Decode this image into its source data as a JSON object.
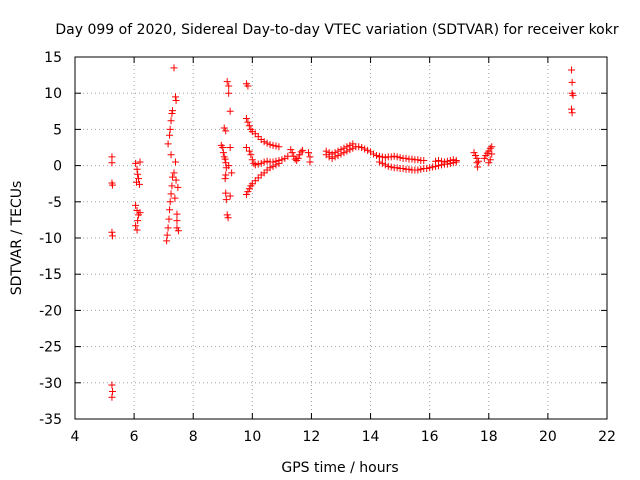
{
  "chart_data": {
    "type": "scatter",
    "title": "Day 099 of 2020, Sidereal Day-to-day VTEC variation (SDTVAR) for receiver kokr",
    "xlabel": "GPS time / hours",
    "ylabel": "SDTVAR / TECUs",
    "xlim": [
      4,
      22
    ],
    "ylim": [
      -35,
      15
    ],
    "xticks": [
      4,
      6,
      8,
      10,
      12,
      14,
      16,
      18,
      20,
      22
    ],
    "yticks": [
      15,
      10,
      5,
      0,
      -5,
      -10,
      -15,
      -20,
      -25,
      -30,
      -35
    ],
    "grid": true,
    "marker": "+",
    "color": "#ff0000",
    "series": [
      {
        "name": "SDTVAR",
        "points": [
          [
            5.25,
            1.2
          ],
          [
            5.25,
            0.4
          ],
          [
            5.25,
            -2.4
          ],
          [
            5.27,
            -2.7
          ],
          [
            5.25,
            -9.2
          ],
          [
            5.27,
            -9.7
          ],
          [
            5.25,
            -30.3
          ],
          [
            5.27,
            -31.2
          ],
          [
            5.25,
            -32.0
          ],
          [
            6.05,
            0.3
          ],
          [
            6.1,
            -0.5
          ],
          [
            6.12,
            -1.2
          ],
          [
            6.15,
            -1.8
          ],
          [
            6.08,
            -2.3
          ],
          [
            6.18,
            -2.6
          ],
          [
            6.05,
            -5.5
          ],
          [
            6.1,
            -6.2
          ],
          [
            6.15,
            -6.8
          ],
          [
            6.12,
            -7.6
          ],
          [
            6.05,
            -8.3
          ],
          [
            6.1,
            -8.9
          ],
          [
            6.2,
            -6.5
          ],
          [
            6.2,
            0.5
          ],
          [
            7.1,
            -10.4
          ],
          [
            7.12,
            -9.6
          ],
          [
            7.15,
            -8.6
          ],
          [
            7.18,
            -7.4
          ],
          [
            7.2,
            -6.1
          ],
          [
            7.22,
            -5.0
          ],
          [
            7.25,
            -3.9
          ],
          [
            7.28,
            -2.8
          ],
          [
            7.3,
            -1.6
          ],
          [
            7.25,
            1.5
          ],
          [
            7.2,
            4.2
          ],
          [
            7.22,
            5.0
          ],
          [
            7.25,
            6.2
          ],
          [
            7.28,
            7.2
          ],
          [
            7.3,
            7.6
          ],
          [
            7.35,
            13.5
          ],
          [
            7.4,
            9.5
          ],
          [
            7.42,
            9.0
          ],
          [
            7.4,
            0.5
          ],
          [
            7.42,
            -2.0
          ],
          [
            7.45,
            -6.7
          ],
          [
            7.45,
            -7.6
          ],
          [
            7.45,
            -8.6
          ],
          [
            7.48,
            -3.0
          ],
          [
            7.5,
            -9.0
          ],
          [
            7.15,
            3.0
          ],
          [
            7.35,
            -1.0
          ],
          [
            7.38,
            -4.5
          ],
          [
            8.95,
            2.8
          ],
          [
            9.0,
            2.5
          ],
          [
            9.02,
            1.8
          ],
          [
            9.05,
            1.2
          ],
          [
            9.08,
            0.9
          ],
          [
            9.1,
            0.4
          ],
          [
            9.12,
            -0.3
          ],
          [
            9.1,
            -1.3
          ],
          [
            9.08,
            -1.8
          ],
          [
            9.1,
            -3.8
          ],
          [
            9.12,
            -4.7
          ],
          [
            9.15,
            -6.8
          ],
          [
            9.18,
            -7.2
          ],
          [
            9.05,
            5.2
          ],
          [
            9.1,
            4.8
          ],
          [
            9.15,
            11.6
          ],
          [
            9.2,
            11.0
          ],
          [
            9.2,
            10.0
          ],
          [
            9.25,
            7.5
          ],
          [
            9.25,
            2.5
          ],
          [
            9.2,
            0.0
          ],
          [
            9.25,
            -4.2
          ],
          [
            9.3,
            -1.0
          ],
          [
            9.8,
            11.3
          ],
          [
            9.85,
            11.0
          ],
          [
            9.8,
            6.5
          ],
          [
            9.85,
            6.0
          ],
          [
            9.9,
            5.5
          ],
          [
            9.95,
            5.0
          ],
          [
            10.0,
            4.7
          ],
          [
            10.1,
            4.4
          ],
          [
            10.2,
            4.0
          ],
          [
            10.3,
            3.6
          ],
          [
            10.4,
            3.3
          ],
          [
            10.5,
            3.1
          ],
          [
            10.6,
            2.9
          ],
          [
            10.7,
            2.8
          ],
          [
            10.8,
            2.7
          ],
          [
            10.9,
            2.6
          ],
          [
            9.8,
            2.5
          ],
          [
            9.9,
            2.0
          ],
          [
            9.95,
            1.5
          ],
          [
            10.0,
            0.8
          ],
          [
            10.05,
            0.3
          ],
          [
            10.1,
            0.1
          ],
          [
            10.2,
            0.2
          ],
          [
            10.3,
            0.3
          ],
          [
            10.4,
            0.5
          ],
          [
            10.5,
            0.6
          ],
          [
            10.6,
            0.5
          ],
          [
            10.7,
            0.5
          ],
          [
            10.8,
            0.6
          ],
          [
            10.9,
            0.7
          ],
          [
            11.0,
            0.8
          ],
          [
            11.1,
            1.0
          ],
          [
            11.2,
            1.3
          ],
          [
            9.8,
            -4.0
          ],
          [
            9.85,
            -3.6
          ],
          [
            9.9,
            -3.2
          ],
          [
            9.95,
            -2.8
          ],
          [
            10.0,
            -2.5
          ],
          [
            10.1,
            -2.1
          ],
          [
            10.2,
            -1.7
          ],
          [
            10.3,
            -1.3
          ],
          [
            10.4,
            -1.0
          ],
          [
            10.5,
            -0.6
          ],
          [
            10.6,
            -0.3
          ],
          [
            10.7,
            -0.1
          ],
          [
            10.8,
            0.1
          ],
          [
            10.9,
            0.3
          ],
          [
            11.3,
            2.2
          ],
          [
            11.35,
            1.8
          ],
          [
            11.4,
            1.3
          ],
          [
            11.45,
            0.9
          ],
          [
            11.5,
            0.7
          ],
          [
            11.55,
            1.0
          ],
          [
            11.6,
            1.5
          ],
          [
            11.65,
            1.9
          ],
          [
            11.7,
            2.1
          ],
          [
            11.9,
            1.8
          ],
          [
            11.95,
            1.2
          ],
          [
            11.95,
            0.5
          ],
          [
            12.5,
            1.5
          ],
          [
            12.6,
            1.2
          ],
          [
            12.7,
            1.0
          ],
          [
            12.8,
            1.2
          ],
          [
            12.9,
            1.4
          ],
          [
            13.0,
            1.6
          ],
          [
            13.1,
            1.8
          ],
          [
            13.2,
            2.0
          ],
          [
            13.3,
            2.2
          ],
          [
            13.4,
            2.4
          ],
          [
            13.5,
            2.6
          ],
          [
            13.6,
            2.6
          ],
          [
            13.7,
            2.5
          ],
          [
            13.8,
            2.3
          ],
          [
            13.9,
            2.1
          ],
          [
            14.0,
            1.9
          ],
          [
            14.1,
            1.6
          ],
          [
            14.2,
            1.4
          ],
          [
            14.3,
            1.2
          ],
          [
            12.5,
            2.0
          ],
          [
            12.6,
            1.8
          ],
          [
            12.7,
            1.6
          ],
          [
            12.8,
            1.8
          ],
          [
            12.9,
            2.0
          ],
          [
            13.0,
            2.2
          ],
          [
            13.1,
            2.4
          ],
          [
            13.2,
            2.6
          ],
          [
            13.3,
            2.8
          ],
          [
            13.4,
            3.0
          ],
          [
            14.3,
            1.3
          ],
          [
            14.4,
            1.2
          ],
          [
            14.5,
            1.1
          ],
          [
            14.6,
            1.2
          ],
          [
            14.7,
            1.2
          ],
          [
            14.8,
            1.3
          ],
          [
            14.9,
            1.2
          ],
          [
            15.0,
            1.1
          ],
          [
            15.1,
            1.0
          ],
          [
            15.2,
            1.0
          ],
          [
            15.3,
            0.9
          ],
          [
            15.4,
            0.9
          ],
          [
            15.5,
            0.8
          ],
          [
            15.6,
            0.8
          ],
          [
            15.7,
            0.7
          ],
          [
            15.8,
            0.7
          ],
          [
            14.3,
            0.5
          ],
          [
            14.4,
            0.3
          ],
          [
            14.5,
            0.1
          ],
          [
            14.6,
            -0.1
          ],
          [
            14.7,
            -0.2
          ],
          [
            14.8,
            -0.3
          ],
          [
            14.9,
            -0.3
          ],
          [
            15.0,
            -0.4
          ],
          [
            15.1,
            -0.4
          ],
          [
            15.2,
            -0.5
          ],
          [
            15.3,
            -0.5
          ],
          [
            15.4,
            -0.6
          ],
          [
            15.5,
            -0.6
          ],
          [
            15.6,
            -0.6
          ],
          [
            15.7,
            -0.5
          ],
          [
            15.8,
            -0.4
          ],
          [
            15.9,
            -0.4
          ],
          [
            16.0,
            -0.3
          ],
          [
            16.1,
            -0.2
          ],
          [
            16.2,
            -0.1
          ],
          [
            16.3,
            0.0
          ],
          [
            16.4,
            0.1
          ],
          [
            16.5,
            0.2
          ],
          [
            16.6,
            0.2
          ],
          [
            16.7,
            0.3
          ],
          [
            16.8,
            0.4
          ],
          [
            16.9,
            0.5
          ],
          [
            16.2,
            0.6
          ],
          [
            16.3,
            0.7
          ],
          [
            16.4,
            0.6
          ],
          [
            16.5,
            0.5
          ],
          [
            16.6,
            0.6
          ],
          [
            16.7,
            0.7
          ],
          [
            16.8,
            0.8
          ],
          [
            16.9,
            0.7
          ],
          [
            17.5,
            1.8
          ],
          [
            17.55,
            1.4
          ],
          [
            17.6,
            1.0
          ],
          [
            17.6,
            0.4
          ],
          [
            17.62,
            -0.2
          ],
          [
            17.65,
            0.6
          ],
          [
            17.85,
            1.0
          ],
          [
            17.9,
            1.4
          ],
          [
            17.95,
            1.7
          ],
          [
            18.0,
            2.0
          ],
          [
            18.05,
            2.4
          ],
          [
            18.1,
            2.6
          ],
          [
            18.1,
            1.6
          ],
          [
            18.05,
            0.8
          ],
          [
            18.0,
            0.4
          ],
          [
            20.8,
            13.2
          ],
          [
            20.82,
            11.5
          ],
          [
            20.82,
            10.0
          ],
          [
            20.85,
            9.7
          ],
          [
            20.8,
            7.8
          ],
          [
            20.82,
            7.3
          ]
        ]
      }
    ]
  }
}
